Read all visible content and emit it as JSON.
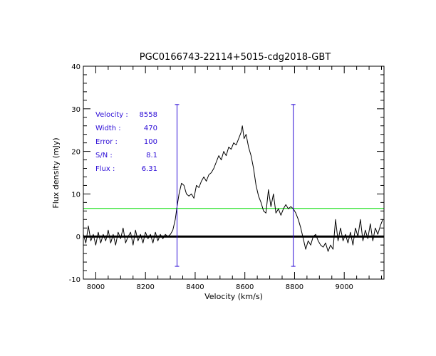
{
  "chart_data": {
    "type": "line",
    "title": "PGC0166743-22114+5015-cdg2018-GBT",
    "xlabel": "Velocity (km/s)",
    "ylabel": "Flux density (mJy)",
    "xlim": [
      7950,
      9160
    ],
    "ylim": [
      -10,
      40
    ],
    "x_ticks": [
      8000,
      8200,
      8400,
      8600,
      8800,
      9000
    ],
    "y_ticks": [
      -10,
      0,
      10,
      20,
      30,
      40
    ],
    "x_ticks_labels": [
      "8000",
      "8200",
      "8400",
      "8600",
      "8800",
      "9000"
    ],
    "y_ticks_labels": [
      "-10",
      "0",
      "10",
      "20",
      "30",
      "40"
    ],
    "grid": false,
    "series": [
      {
        "color": "#000000",
        "points": [
          [
            7950,
            0.5
          ],
          [
            7960,
            -1.5
          ],
          [
            7970,
            2.5
          ],
          [
            7980,
            -1
          ],
          [
            7990,
            0.5
          ],
          [
            8000,
            -2
          ],
          [
            8010,
            1
          ],
          [
            8020,
            -1.5
          ],
          [
            8030,
            0.5
          ],
          [
            8040,
            -1
          ],
          [
            8050,
            1.5
          ],
          [
            8060,
            -1.5
          ],
          [
            8070,
            0.5
          ],
          [
            8080,
            -2
          ],
          [
            8090,
            1
          ],
          [
            8100,
            -0.5
          ],
          [
            8110,
            2
          ],
          [
            8120,
            -1.5
          ],
          [
            8130,
            0
          ],
          [
            8140,
            1
          ],
          [
            8150,
            -2
          ],
          [
            8160,
            1.5
          ],
          [
            8170,
            -1
          ],
          [
            8180,
            0.5
          ],
          [
            8190,
            -1.5
          ],
          [
            8200,
            1
          ],
          [
            8210,
            -0.5
          ],
          [
            8220,
            0.5
          ],
          [
            8230,
            -1.5
          ],
          [
            8240,
            1
          ],
          [
            8250,
            -1
          ],
          [
            8260,
            0.5
          ],
          [
            8270,
            -0.5
          ],
          [
            8280,
            0.5
          ],
          [
            8290,
            0
          ],
          [
            8300,
            0.5
          ],
          [
            8310,
            1.5
          ],
          [
            8320,
            4
          ],
          [
            8327,
            7
          ],
          [
            8335,
            10
          ],
          [
            8345,
            12.5
          ],
          [
            8355,
            12
          ],
          [
            8365,
            10
          ],
          [
            8375,
            9.5
          ],
          [
            8385,
            10
          ],
          [
            8395,
            9
          ],
          [
            8405,
            12
          ],
          [
            8415,
            11.5
          ],
          [
            8425,
            13
          ],
          [
            8435,
            14
          ],
          [
            8445,
            13
          ],
          [
            8455,
            14.5
          ],
          [
            8465,
            15
          ],
          [
            8475,
            16
          ],
          [
            8485,
            17.5
          ],
          [
            8495,
            19
          ],
          [
            8505,
            18
          ],
          [
            8515,
            20
          ],
          [
            8525,
            19
          ],
          [
            8535,
            21
          ],
          [
            8545,
            20.5
          ],
          [
            8555,
            22
          ],
          [
            8565,
            21.5
          ],
          [
            8575,
            23
          ],
          [
            8585,
            24.5
          ],
          [
            8590,
            26
          ],
          [
            8597,
            23
          ],
          [
            8605,
            24
          ],
          [
            8615,
            21
          ],
          [
            8625,
            19
          ],
          [
            8635,
            16
          ],
          [
            8645,
            12
          ],
          [
            8655,
            9.5
          ],
          [
            8665,
            8
          ],
          [
            8675,
            6
          ],
          [
            8685,
            5.5
          ],
          [
            8695,
            11
          ],
          [
            8705,
            7
          ],
          [
            8715,
            10
          ],
          [
            8725,
            5.5
          ],
          [
            8735,
            6.5
          ],
          [
            8745,
            5
          ],
          [
            8755,
            6.5
          ],
          [
            8765,
            7.5
          ],
          [
            8775,
            6.5
          ],
          [
            8785,
            7
          ],
          [
            8795,
            6.5
          ],
          [
            8805,
            5.5
          ],
          [
            8815,
            4
          ],
          [
            8825,
            2
          ],
          [
            8835,
            -0.5
          ],
          [
            8845,
            -3
          ],
          [
            8855,
            -1
          ],
          [
            8865,
            -2
          ],
          [
            8875,
            0
          ],
          [
            8885,
            0.5
          ],
          [
            8895,
            -1
          ],
          [
            8905,
            -2
          ],
          [
            8915,
            -2.5
          ],
          [
            8925,
            -1.5
          ],
          [
            8935,
            -3.5
          ],
          [
            8945,
            -2
          ],
          [
            8955,
            -3
          ],
          [
            8965,
            4
          ],
          [
            8975,
            -1
          ],
          [
            8985,
            2
          ],
          [
            8995,
            -1
          ],
          [
            9005,
            0.5
          ],
          [
            9015,
            -1.5
          ],
          [
            9025,
            1
          ],
          [
            9035,
            -2
          ],
          [
            9045,
            2
          ],
          [
            9055,
            0
          ],
          [
            9065,
            4
          ],
          [
            9075,
            -1
          ],
          [
            9085,
            1.5
          ],
          [
            9095,
            -0.5
          ],
          [
            9105,
            3
          ],
          [
            9115,
            -1
          ],
          [
            9125,
            2
          ],
          [
            9135,
            0.5
          ],
          [
            9145,
            2.5
          ],
          [
            9155,
            4
          ]
        ]
      }
    ],
    "horizontal_lines": [
      {
        "y": 0,
        "color": "#000000",
        "style": "thick"
      },
      {
        "y": 6.6,
        "color": "#00dd00",
        "style": "thin"
      }
    ],
    "vertical_markers": [
      {
        "x": 8327,
        "y_range": [
          -7,
          31
        ],
        "color": "#2b0bd6"
      },
      {
        "x": 8795,
        "y_range": [
          -7,
          31
        ],
        "color": "#2b0bd6"
      }
    ],
    "annotations": {
      "color": "#2b0bd6",
      "rows": [
        {
          "label": "Velocity :",
          "value": "8558"
        },
        {
          "label": "Width :",
          "value": "470"
        },
        {
          "label": "Error :",
          "value": "100"
        },
        {
          "label": "S/N :",
          "value": "8.1"
        },
        {
          "label": "Flux :",
          "value": "6.31"
        }
      ]
    }
  }
}
